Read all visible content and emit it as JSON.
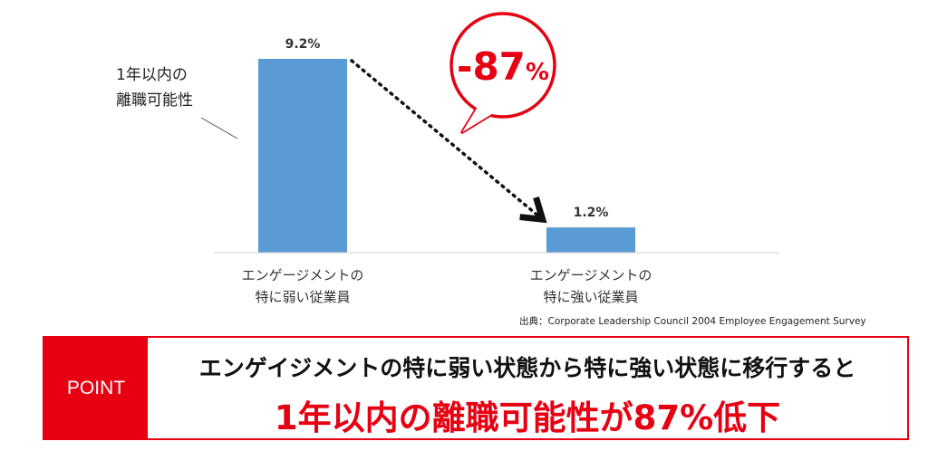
{
  "chart_data": {
    "type": "bar",
    "categories": [
      "エンゲージメントの\n特に弱い従業員",
      "エンゲージメントの\n特に強い従業員"
    ],
    "values": [
      9.2,
      1.2
    ],
    "value_labels": [
      "9.2%",
      "1.2%"
    ],
    "ylabel": "1年以内の\n離職可能性",
    "annotation": "-87%",
    "grid": false,
    "colors": {
      "bar": "#5b9bd5",
      "accent": "#e60012"
    }
  },
  "source": "出典：Corporate Leadership Council 2004 Employee Engagement Survey",
  "point": {
    "label": "POINT",
    "line1": "エンゲイジメントの特に弱い状態から特に強い状態に移行すると",
    "line2": "1年以内の離職可能性が87%低下"
  }
}
